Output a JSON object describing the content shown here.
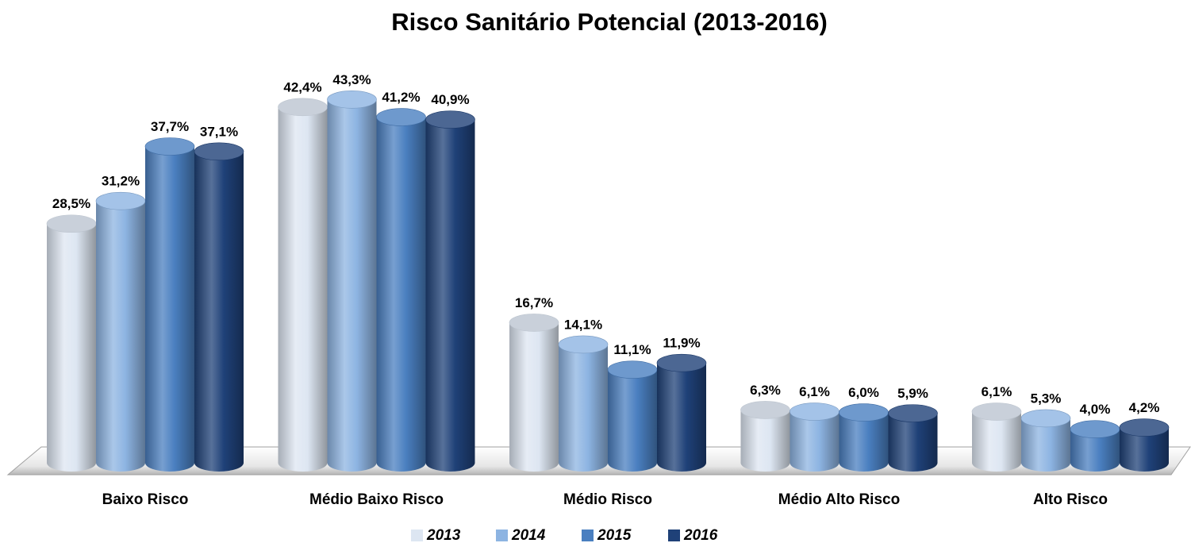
{
  "chart_data": {
    "type": "bar",
    "title": "Risco Sanitário Potencial (2013-2016)",
    "categories": [
      "Baixo Risco",
      "Médio Baixo Risco",
      "Médio Risco",
      "Médio Alto Risco",
      "Alto Risco"
    ],
    "series": [
      {
        "name": "2013",
        "color": "#dde6f2",
        "values": [
          28.5,
          42.4,
          16.7,
          6.3,
          6.1
        ],
        "value_labels": [
          "28,5%",
          "42,4%",
          "16,7%",
          "6,3%",
          "6,1%"
        ]
      },
      {
        "name": "2014",
        "color": "#8db4e2",
        "values": [
          31.2,
          43.3,
          14.1,
          6.1,
          5.3
        ],
        "value_labels": [
          "31,2%",
          "43,3%",
          "14,1%",
          "6,1%",
          "5,3%"
        ]
      },
      {
        "name": "2015",
        "color": "#4a7fc0",
        "values": [
          37.7,
          41.2,
          11.1,
          6.0,
          4.0
        ],
        "value_labels": [
          "37,7%",
          "41,2%",
          "11,1%",
          "6,0%",
          "4,0%"
        ]
      },
      {
        "name": "2016",
        "color": "#1f4178",
        "values": [
          37.1,
          40.9,
          11.9,
          5.9,
          4.2
        ],
        "value_labels": [
          "37,1%",
          "40,9%",
          "11,9%",
          "5,9%",
          "4,2%"
        ]
      }
    ],
    "legend": "bottom"
  }
}
